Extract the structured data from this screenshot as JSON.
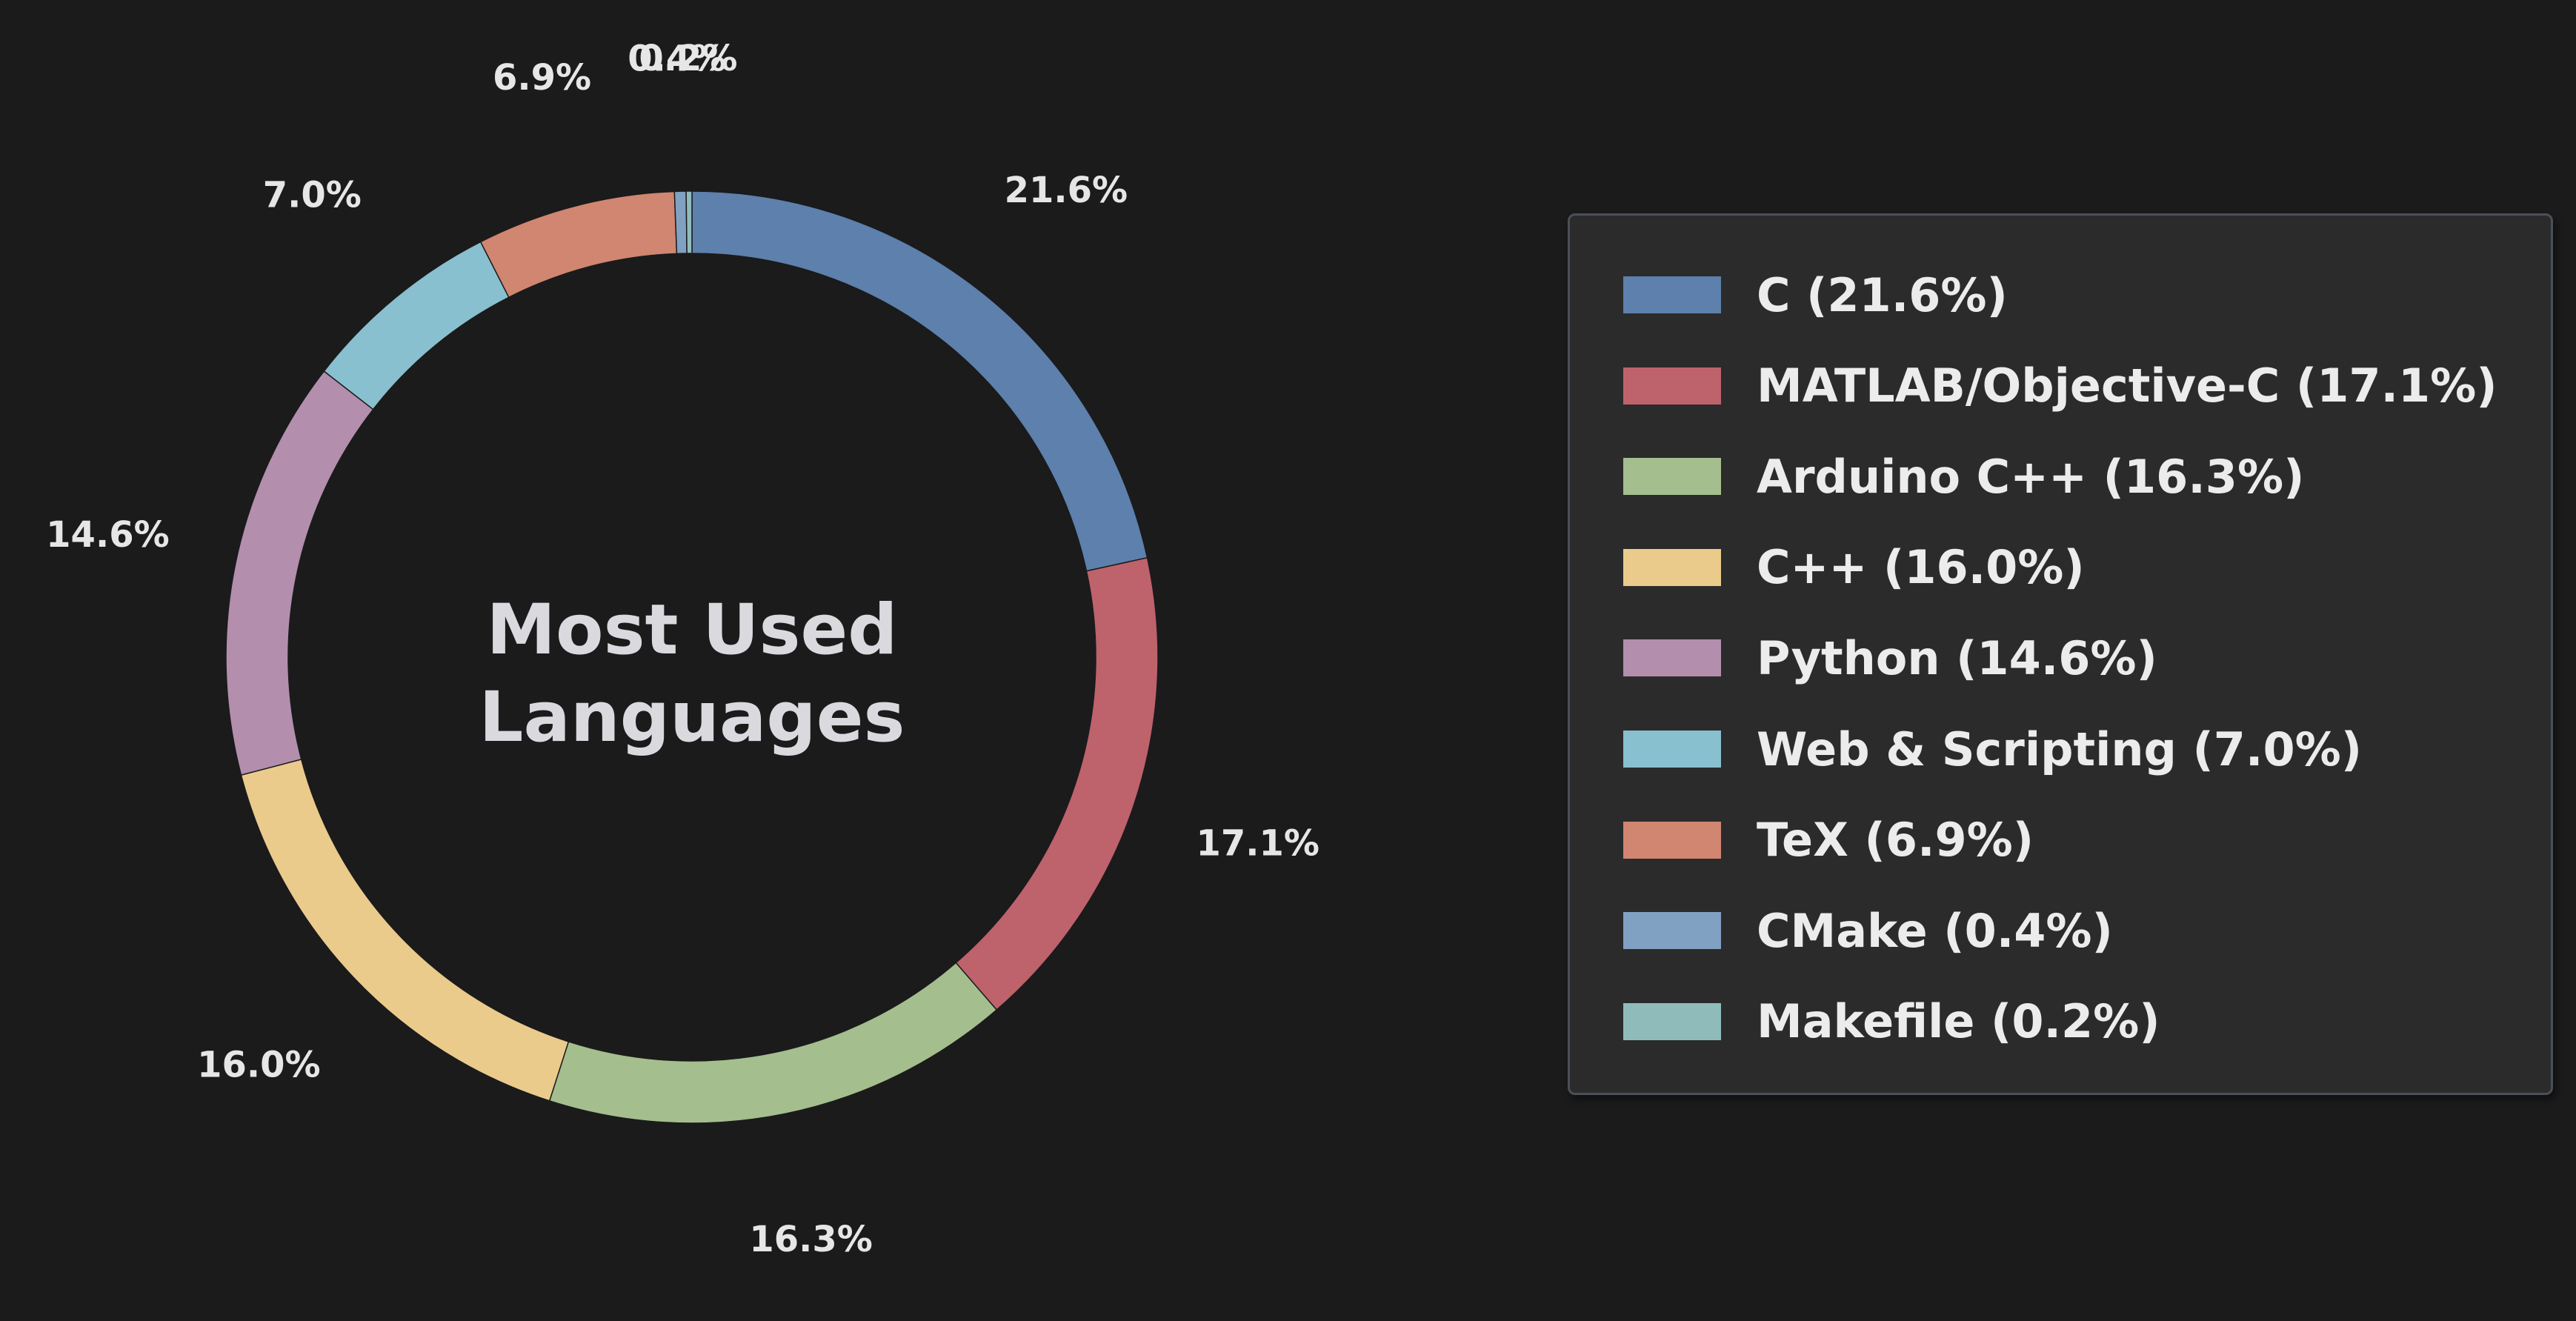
{
  "chart_data": {
    "type": "pie",
    "subtype": "donut",
    "center_title": [
      "Most Used",
      "Languages"
    ],
    "start_angle_deg": 90,
    "direction": "clockwise",
    "legend_position": "right",
    "slices": [
      {
        "label": "C",
        "value": 21.6,
        "pct_label": "21.6%",
        "legend": "C (21.6%)",
        "color": "#5d80ac"
      },
      {
        "label": "MATLAB/Objective-C",
        "value": 17.1,
        "pct_label": "17.1%",
        "legend": "MATLAB/Objective-C (17.1%)",
        "color": "#be626c"
      },
      {
        "label": "Arduino C++",
        "value": 16.3,
        "pct_label": "16.3%",
        "legend": "Arduino C++ (16.3%)",
        "color": "#a4be8e"
      },
      {
        "label": "C++",
        "value": 16.0,
        "pct_label": "16.0%",
        "legend": "C++ (16.0%)",
        "color": "#eacb8c"
      },
      {
        "label": "Python",
        "value": 14.6,
        "pct_label": "14.6%",
        "legend": "Python (14.6%)",
        "color": "#b38ead"
      },
      {
        "label": "Web & Scripting",
        "value": 7.0,
        "pct_label": "7.0%",
        "legend": "Web & Scripting (7.0%)",
        "color": "#88c0cf"
      },
      {
        "label": "TeX",
        "value": 6.9,
        "pct_label": "6.9%",
        "legend": "TeX (6.9%)",
        "color": "#d08670"
      },
      {
        "label": "CMake",
        "value": 0.4,
        "pct_label": "0.4%",
        "legend": "CMake (0.4%)",
        "color": "#81a1c2"
      },
      {
        "label": "Makefile",
        "value": 0.2,
        "pct_label": "0.2%",
        "legend": "Makefile (0.2%)",
        "color": "#8fbcbb"
      }
    ]
  }
}
